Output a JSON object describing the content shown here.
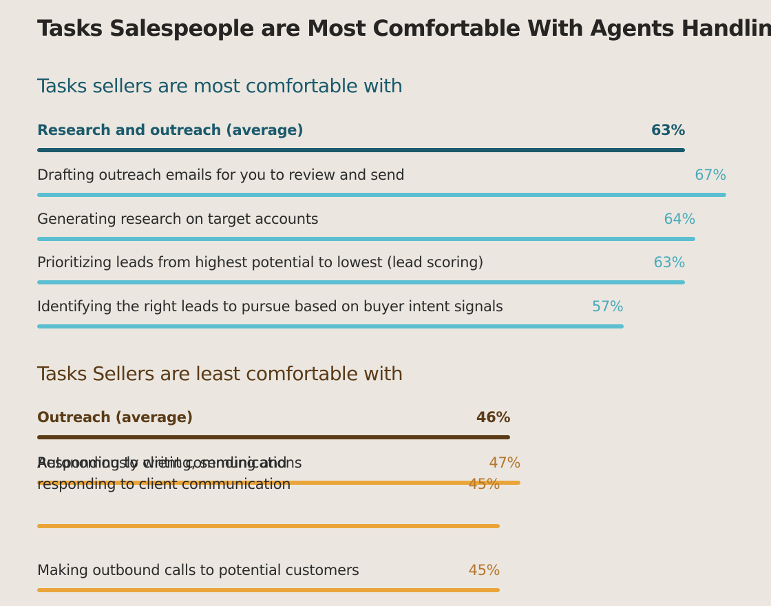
{
  "title": "Tasks Salespeople are Most Comfortable With Agents Handling",
  "colors": {
    "background": "#ebe7e0",
    "most_avg": "#1b5a6c",
    "most_item": "#5bbfd1",
    "most_item_text": "#4aaabb",
    "least_avg": "#5b3b17",
    "least_item": "#eaa53a",
    "least_item_text": "#b5762c"
  },
  "chart_data": [
    {
      "type": "bar",
      "title": "Tasks sellers are most comfortable with",
      "categories": [
        "Research and outreach (average)",
        "Drafting outreach emails for you to review and send",
        "Generating research on target accounts",
        "Prioritizing leads from highest potential to lowest (lead scoring)",
        "Identifying the right leads to pursue based on buyer intent signals"
      ],
      "values": [
        63,
        67,
        64,
        63,
        57
      ],
      "value_labels": [
        "63%",
        "67%",
        "64%",
        "63%",
        "57%"
      ]
    },
    {
      "type": "bar",
      "title": "Tasks Sellers are least comfortable with",
      "categories": [
        "Outreach (average)",
        "Responding to client communications",
        "Autonomously writing, sending and responding to client communication",
        "Making outbound calls to potential customers"
      ],
      "values": [
        46,
        47,
        45,
        45
      ],
      "value_labels": [
        "46%",
        "47%",
        "45%",
        "45%"
      ]
    }
  ]
}
